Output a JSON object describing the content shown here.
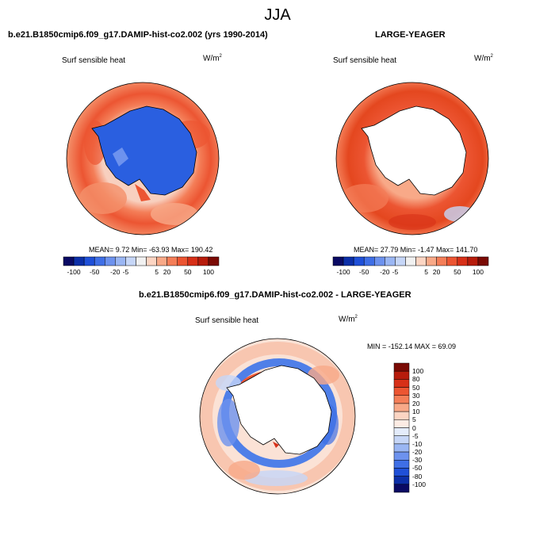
{
  "title": "JJA",
  "panels": [
    {
      "header": "b.e21.B1850cmip6.f09_g17.DAMIP-hist-co2.002 (yrs 1990-2014)",
      "variable": "Surf sensible heat",
      "units": "W/m",
      "units_exp": "2",
      "stats": "MEAN=   9.72  Min= -63.93  Max= 190.42"
    },
    {
      "header": "LARGE-YEAGER",
      "variable": "Surf sensible heat",
      "units": "W/m",
      "units_exp": "2",
      "stats": "MEAN=  27.79  Min=  -1.47  Max= 141.70"
    },
    {
      "header": "b.e21.B1850cmip6.f09_g17.DAMIP-hist-co2.002 - LARGE-YEAGER",
      "variable": "Surf sensible heat",
      "units": "W/m",
      "units_exp": "2",
      "stats": "MIN = -152.14 MAX =  69.09"
    }
  ],
  "colorbar_top": {
    "tick_labels": [
      "-100",
      "-50",
      "-20",
      "-5",
      "5",
      "20",
      "50",
      "100"
    ],
    "colors": [
      "#0a0a64",
      "#0c2fa8",
      "#1f50d8",
      "#3f6fe6",
      "#6d92ee",
      "#9ab6f3",
      "#c6d6f7",
      "#f1f1f1",
      "#fcd5c3",
      "#f8a988",
      "#f47e58",
      "#ec5532",
      "#d73018",
      "#b71c0c",
      "#7a0a04"
    ]
  },
  "colorbar_diff": {
    "tick_labels": [
      "100",
      "80",
      "50",
      "30",
      "20",
      "10",
      "5",
      "0",
      "-5",
      "-10",
      "-20",
      "-30",
      "-50",
      "-80",
      "-100"
    ],
    "colors": [
      "#7a0a04",
      "#b71c0c",
      "#d73018",
      "#ec5532",
      "#f47e58",
      "#f8a988",
      "#fcd5c3",
      "#fdece4",
      "#e4ecfb",
      "#c6d6f7",
      "#9ab6f3",
      "#6d92ee",
      "#3f6fe6",
      "#1f50d8",
      "#0c2fa8",
      "#0a0a64"
    ]
  }
}
